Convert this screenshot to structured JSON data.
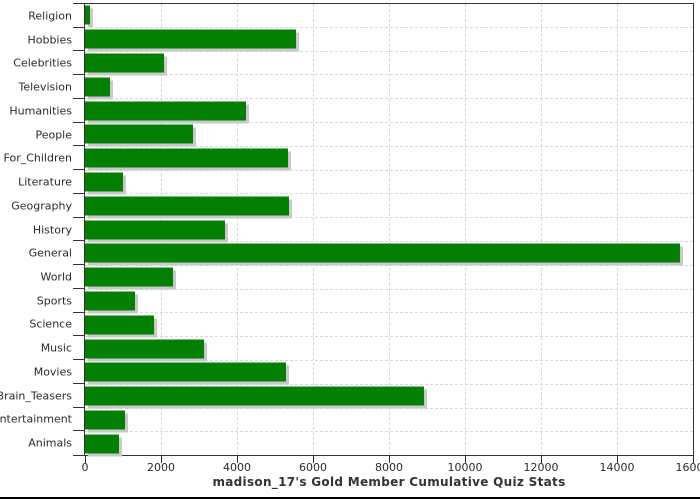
{
  "chart_data": {
    "type": "bar",
    "orientation": "horizontal",
    "title": "madison_17's Gold Member Cumulative Quiz Stats",
    "categories": [
      "Religion",
      "Hobbies",
      "Celebrities",
      "Television",
      "Humanities",
      "People",
      "For_Children",
      "Literature",
      "Geography",
      "History",
      "General",
      "World",
      "Sports",
      "Science",
      "Music",
      "Movies",
      "Brain_Teasers",
      "Entertainment",
      "Animals"
    ],
    "values": [
      130,
      5560,
      2080,
      660,
      4240,
      2830,
      5340,
      990,
      5380,
      3690,
      15660,
      2320,
      1310,
      1810,
      3120,
      5280,
      8930,
      1040,
      890
    ],
    "xlabel": "",
    "ylabel": "",
    "xlim": [
      0,
      16000
    ],
    "x_ticks": [
      0,
      2000,
      4000,
      6000,
      8000,
      10000,
      12000,
      14000,
      16000
    ],
    "x_tick_labels": [
      "0",
      "2000",
      "4000",
      "6000",
      "8000",
      "10000",
      "12000",
      "14000",
      "16000"
    ],
    "grid": "dashed, vertical every 2000 and horizontal at category boundaries",
    "legend_position": "none",
    "bar_color": "#038003",
    "bar_shadow_color": "#c9c9c9",
    "gridline_color": "#d6dadc",
    "axis_color": "#333333",
    "text_color": "#2b2b2b"
  }
}
